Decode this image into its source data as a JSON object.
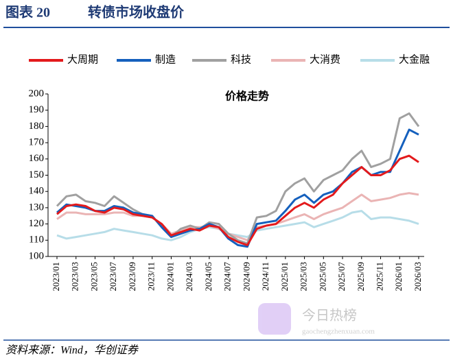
{
  "figure_label": "图表 20",
  "figure_title": "转债市场收盘价",
  "source": "资料来源：Wind，华创证券",
  "watermark": {
    "title": "今日热榜",
    "url": "gaochengzhenxuan.com"
  },
  "chart_data": {
    "type": "line",
    "title": "价格走势",
    "categories": [
      "2023/01",
      null,
      "2023/03",
      null,
      "2023/05",
      null,
      "2023/07",
      null,
      "2023/09",
      null,
      "2023/11",
      null,
      "2024/01",
      null,
      "2024/03",
      null,
      "2024/05",
      null,
      "2024/07",
      null,
      "2024/09",
      null,
      "2024/11",
      null,
      "2025/01",
      null,
      "2025/03",
      null,
      "2025/05",
      null,
      "2025/07",
      null,
      "2025/09",
      null,
      "2025/11",
      null,
      "2026/01",
      null,
      "2026/03"
    ],
    "series": [
      {
        "name": "大周期",
        "color": "#e31a1c",
        "values": [
          126,
          131,
          132,
          131,
          128,
          127,
          130,
          129,
          126,
          125,
          124,
          120,
          113,
          115,
          117,
          116,
          119,
          118,
          112,
          109,
          107,
          117,
          119,
          120,
          125,
          130,
          133,
          130,
          135,
          138,
          145,
          150,
          155,
          150,
          150,
          153,
          160,
          162,
          158
        ]
      },
      {
        "name": "制造",
        "color": "#1560bd",
        "values": [
          127,
          132,
          131,
          130,
          128,
          128,
          131,
          130,
          127,
          126,
          125,
          118,
          112,
          114,
          116,
          117,
          120,
          118,
          111,
          107,
          106,
          120,
          121,
          122,
          128,
          135,
          138,
          133,
          138,
          140,
          145,
          152,
          155,
          150,
          152,
          152,
          165,
          178,
          175
        ]
      },
      {
        "name": "科技",
        "color": "#a0a0a0",
        "values": [
          131,
          137,
          138,
          134,
          133,
          131,
          137,
          133,
          129,
          126,
          125,
          118,
          112,
          117,
          119,
          117,
          121,
          120,
          114,
          110,
          108,
          124,
          125,
          128,
          140,
          145,
          148,
          140,
          147,
          150,
          153,
          160,
          165,
          155,
          157,
          160,
          185,
          188,
          180
        ]
      },
      {
        "name": "大消费",
        "color": "#eab4b4",
        "values": [
          123,
          127,
          127,
          126,
          126,
          126,
          127,
          127,
          125,
          125,
          124,
          120,
          114,
          116,
          118,
          118,
          119,
          117,
          114,
          112,
          110,
          118,
          119,
          120,
          122,
          124,
          126,
          123,
          126,
          128,
          130,
          134,
          138,
          134,
          135,
          136,
          138,
          139,
          138
        ]
      },
      {
        "name": "大金融",
        "color": "#b7dde8",
        "values": [
          113,
          111,
          112,
          113,
          114,
          115,
          117,
          116,
          115,
          114,
          113,
          111,
          110,
          112,
          115,
          117,
          118,
          117,
          114,
          113,
          112,
          116,
          117,
          118,
          119,
          120,
          121,
          118,
          120,
          122,
          124,
          127,
          128,
          123,
          124,
          124,
          123,
          122,
          120
        ]
      }
    ],
    "ylim": [
      100,
      200
    ],
    "yticks": [
      100,
      110,
      120,
      130,
      140,
      150,
      160,
      170,
      180,
      190,
      200
    ],
    "grid": false,
    "legend": "top"
  }
}
